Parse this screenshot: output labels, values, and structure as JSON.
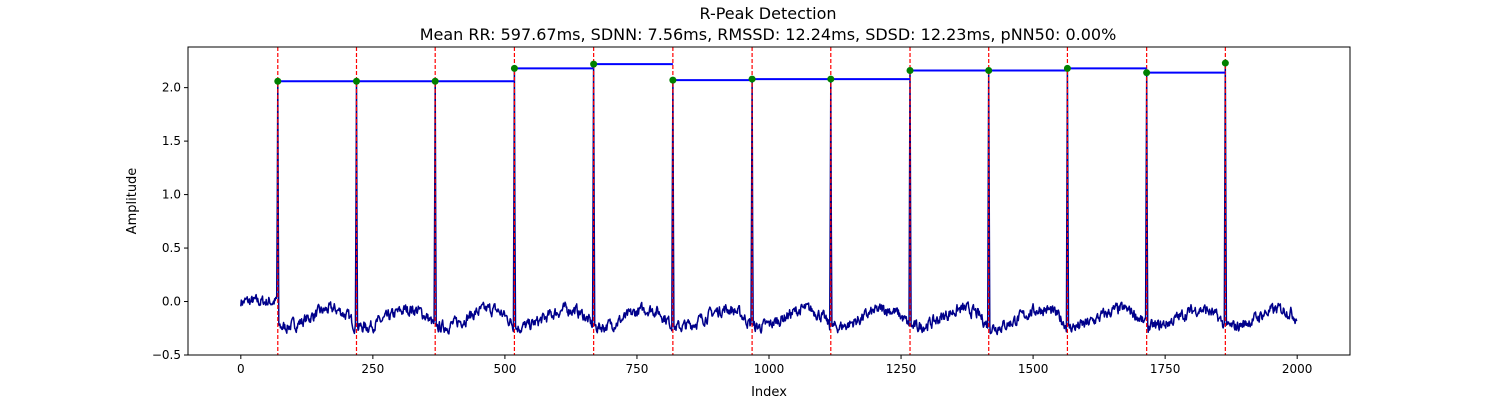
{
  "chart_data": {
    "type": "line",
    "title": "R-Peak Detection",
    "subtitle": "Mean RR: 597.67ms, SDNN: 7.56ms, RMSSD: 12.24ms, SDSD: 12.23ms, pNN50: 0.00%",
    "xlabel": "Index",
    "ylabel": "Amplitude",
    "xlim": [
      -100,
      2100
    ],
    "ylim": [
      -0.5,
      2.38
    ],
    "xticks": [
      0,
      250,
      500,
      750,
      1000,
      1250,
      1500,
      1750,
      2000
    ],
    "xtick_labels": [
      "0",
      "250",
      "500",
      "750",
      "1000",
      "1250",
      "1500",
      "1750",
      "2000"
    ],
    "yticks": [
      -0.5,
      0.0,
      0.5,
      1.0,
      1.5,
      2.0
    ],
    "ytick_labels": [
      "−0.5",
      "0.0",
      "0.5",
      "1.0",
      "1.5",
      "2.0"
    ],
    "grid": false,
    "signal_length": 2000,
    "r_peaks": {
      "x": [
        70,
        219,
        368,
        518,
        668,
        818,
        968,
        1117,
        1267,
        1416,
        1565,
        1715,
        1864
      ],
      "y": [
        2.06,
        2.06,
        2.06,
        2.18,
        2.22,
        2.07,
        2.08,
        2.08,
        2.16,
        2.16,
        2.18,
        2.14,
        2.23
      ]
    },
    "colors": {
      "signal": "#00008b",
      "peak_line": "#ff0000",
      "rr_segment": "#0000ff",
      "peak_marker": "#008000"
    }
  }
}
